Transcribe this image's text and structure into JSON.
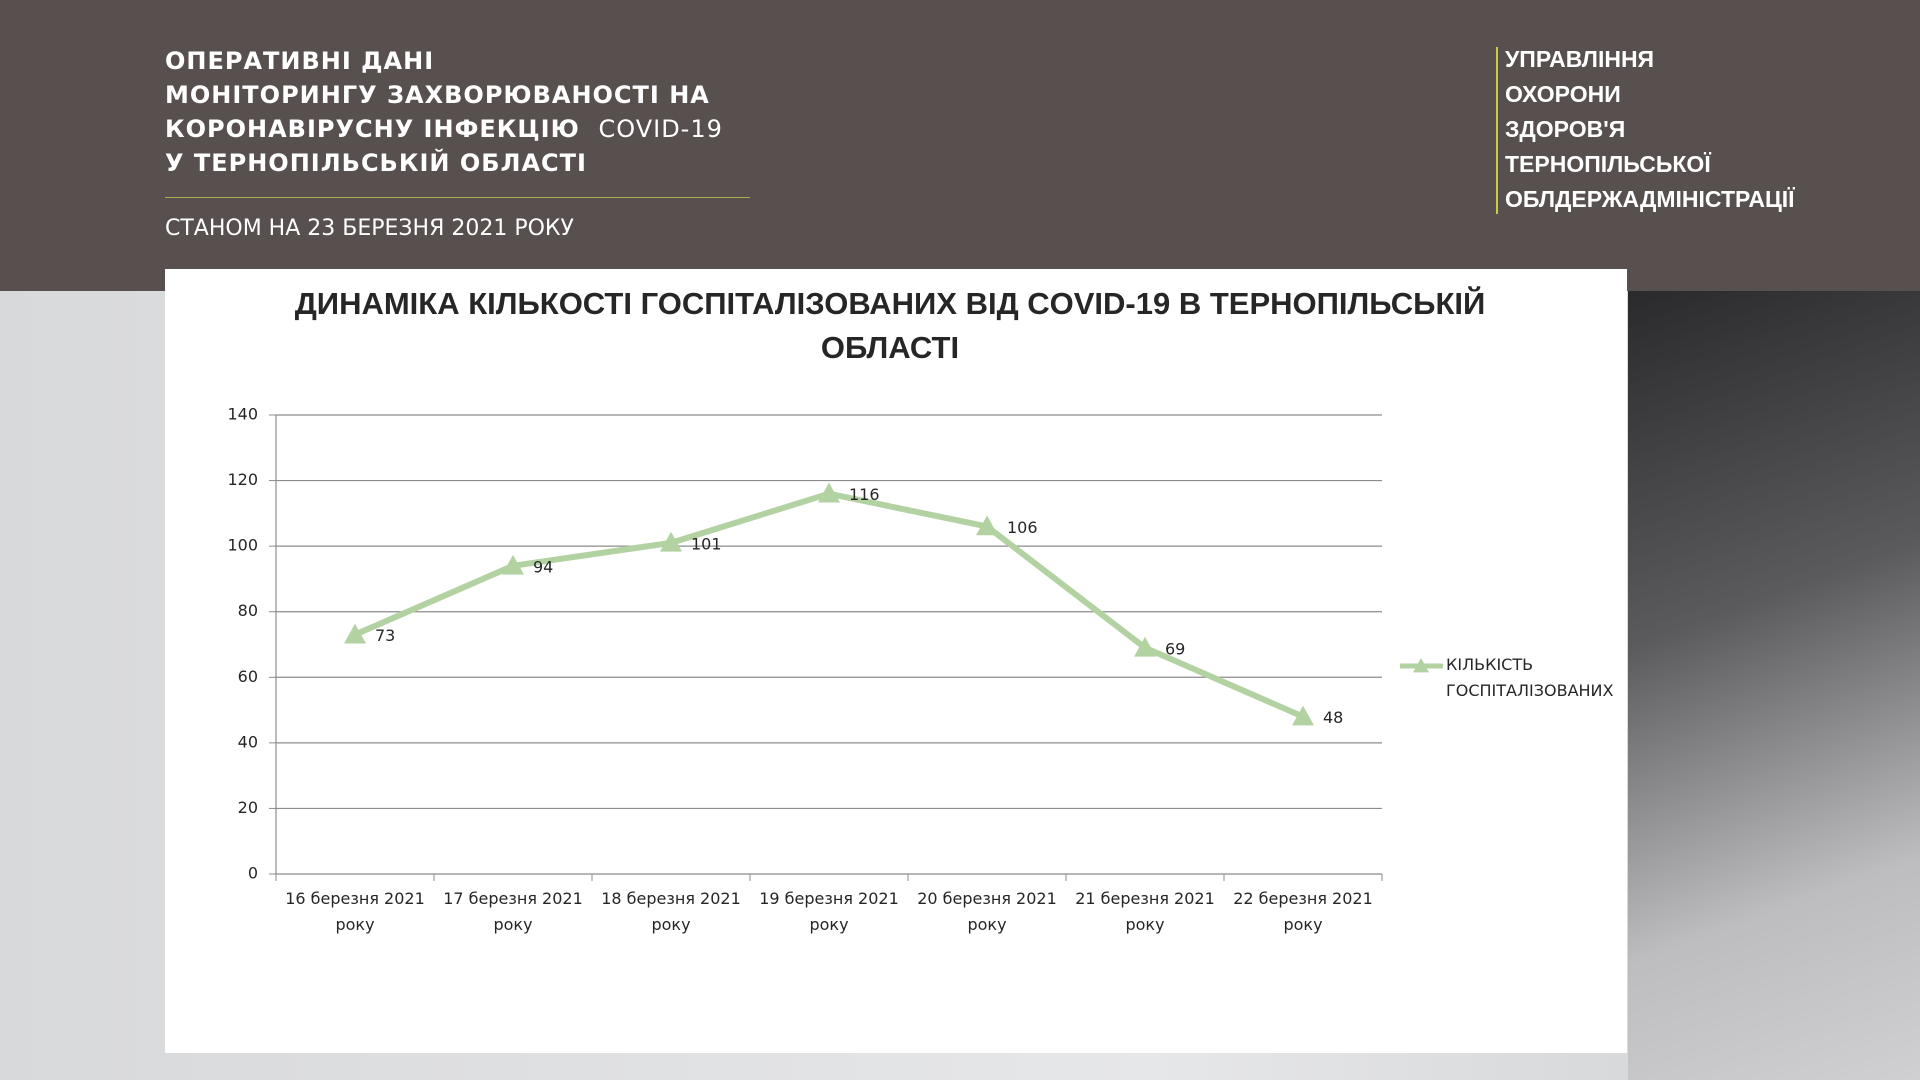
{
  "header": {
    "title_lines": [
      "ОПЕРАТИВНІ ДАНІ",
      "МОНІТОРИНГУ ЗАХВОРЮВАНОСТІ НА",
      "КОРОНАВІРУСНУ ІНФЕКЦІЮ",
      "У ТЕРНОПІЛЬСЬКІЙ ОБЛАСТІ"
    ],
    "title_tag": "COVID-19",
    "date": "СТАНОМ НА 23 БЕРЕЗНЯ 2021 РОКУ",
    "org_lines": [
      "УПРАВЛІННЯ",
      "ОХОРОНИ",
      "ЗДОРОВ'Я",
      "ТЕРНОПІЛЬСЬКОЇ",
      "ОБЛДЕРЖАДМІНІСТРАЦІЇ"
    ]
  },
  "chart_data": {
    "type": "line",
    "title": "ДИНАМІКА КІЛЬКОСТІ ГОСПІТАЛІЗОВАНИХ ВІД COVID-19 В ТЕРНОПІЛЬСЬКІЙ ОБЛАСТІ",
    "categories": [
      "16 березня 2021 року",
      "17 березня 2021 року",
      "18 березня 2021 року",
      "19 березня 2021 року",
      "20 березня 2021 року",
      "21 березня 2021 року",
      "22 березня 2021 року"
    ],
    "series": [
      {
        "name": "КІЛЬКІСТЬ ГОСПІТАЛІЗОВАНИХ",
        "color": "#b3d2a2",
        "values": [
          73,
          94,
          101,
          116,
          106,
          69,
          48
        ]
      }
    ],
    "ylim": [
      0,
      140
    ],
    "yticks": [
      0,
      20,
      40,
      60,
      80,
      100,
      120,
      140
    ],
    "grid": true,
    "legend": "right",
    "data_labels": true
  }
}
